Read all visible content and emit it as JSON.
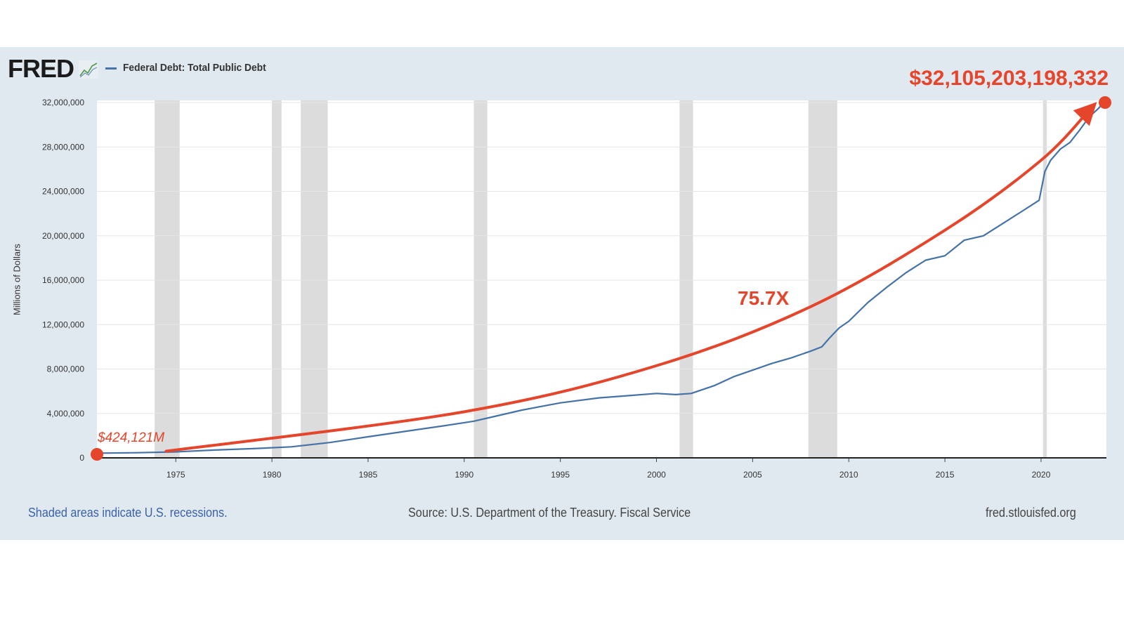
{
  "logo": {
    "text": "FRED",
    "icon": "fred-chart-icon"
  },
  "legend": {
    "series_label": "Federal Debt: Total Public Debt",
    "color": "#4572a7"
  },
  "footer": {
    "recession_note": "Shaded areas indicate U.S. recessions.",
    "source": "Source: U.S. Department of the Treasury. Fiscal Service",
    "site": "fred.stlouisfed.org"
  },
  "colors": {
    "panel": "#e1e9f0",
    "series": "#4572a7",
    "annotation": "#e5452b",
    "recession": "#dcdcdc",
    "grid": "#e6e6e6"
  },
  "annotations": {
    "end_value": "$32,105,203,198,332",
    "start_value": "$424,121M",
    "multiplier": "75.7X"
  },
  "chart_data": {
    "type": "line",
    "title": "Federal Debt: Total Public Debt",
    "ylabel": "Millions of Dollars",
    "xlabel": "",
    "xlim": [
      1970.9,
      2023.4
    ],
    "ylim": [
      0,
      32000000
    ],
    "x_ticks": [
      1975,
      1980,
      1985,
      1990,
      1995,
      2000,
      2005,
      2010,
      2015,
      2020
    ],
    "y_ticks": [
      0,
      4000000,
      8000000,
      12000000,
      16000000,
      20000000,
      24000000,
      28000000,
      32000000
    ],
    "y_tick_labels": [
      "0",
      "4,000,000",
      "8,000,000",
      "12,000,000",
      "16,000,000",
      "20,000,000",
      "24,000,000",
      "28,000,000",
      "32,000,000"
    ],
    "grid": true,
    "legend_position": "top-left",
    "recessions": [
      [
        1973.9,
        1975.2
      ],
      [
        1980.0,
        1980.5
      ],
      [
        1981.5,
        1982.9
      ],
      [
        1990.5,
        1991.2
      ],
      [
        2001.2,
        2001.9
      ],
      [
        2007.9,
        2009.4
      ],
      [
        2020.1,
        2020.3
      ]
    ],
    "series": [
      {
        "name": "Federal Debt: Total Public Debt",
        "x": [
          1971.0,
          1973.0,
          1975.0,
          1977.0,
          1979.0,
          1981.0,
          1983.0,
          1985.0,
          1987.0,
          1989.0,
          1990.5,
          1991.5,
          1993.0,
          1995.0,
          1997.0,
          1998.5,
          2000.0,
          2001.0,
          2001.8,
          2003.0,
          2004.0,
          2005.0,
          2006.0,
          2007.0,
          2008.0,
          2008.6,
          2009.0,
          2009.5,
          2010.0,
          2011.0,
          2012.0,
          2013.0,
          2014.0,
          2015.0,
          2016.0,
          2017.0,
          2018.0,
          2019.0,
          2019.9,
          2020.2,
          2020.5,
          2021.0,
          2021.5,
          2022.0,
          2022.5,
          2023.0,
          2023.3
        ],
        "values": [
          424121,
          460000,
          540000,
          700000,
          830000,
          990000,
          1380000,
          1900000,
          2400000,
          2900000,
          3300000,
          3700000,
          4300000,
          4950000,
          5400000,
          5600000,
          5800000,
          5700000,
          5800000,
          6500000,
          7300000,
          7900000,
          8500000,
          9000000,
          9600000,
          10000000,
          10800000,
          11700000,
          12300000,
          14000000,
          15400000,
          16700000,
          17800000,
          18200000,
          19600000,
          20000000,
          21100000,
          22200000,
          23200000,
          25800000,
          26800000,
          27800000,
          28400000,
          29500000,
          30700000,
          31500000,
          32105203
        ]
      },
      {
        "name": "",
        "style": "annotation-trend",
        "x": [
          1974.5,
          1990.0,
          2000.0,
          2008.0,
          2015.0,
          2020.0,
          2022.6
        ],
        "values": [
          600000,
          4150000,
          8300000,
          13600000,
          20500000,
          26800000,
          31500000
        ]
      }
    ]
  }
}
